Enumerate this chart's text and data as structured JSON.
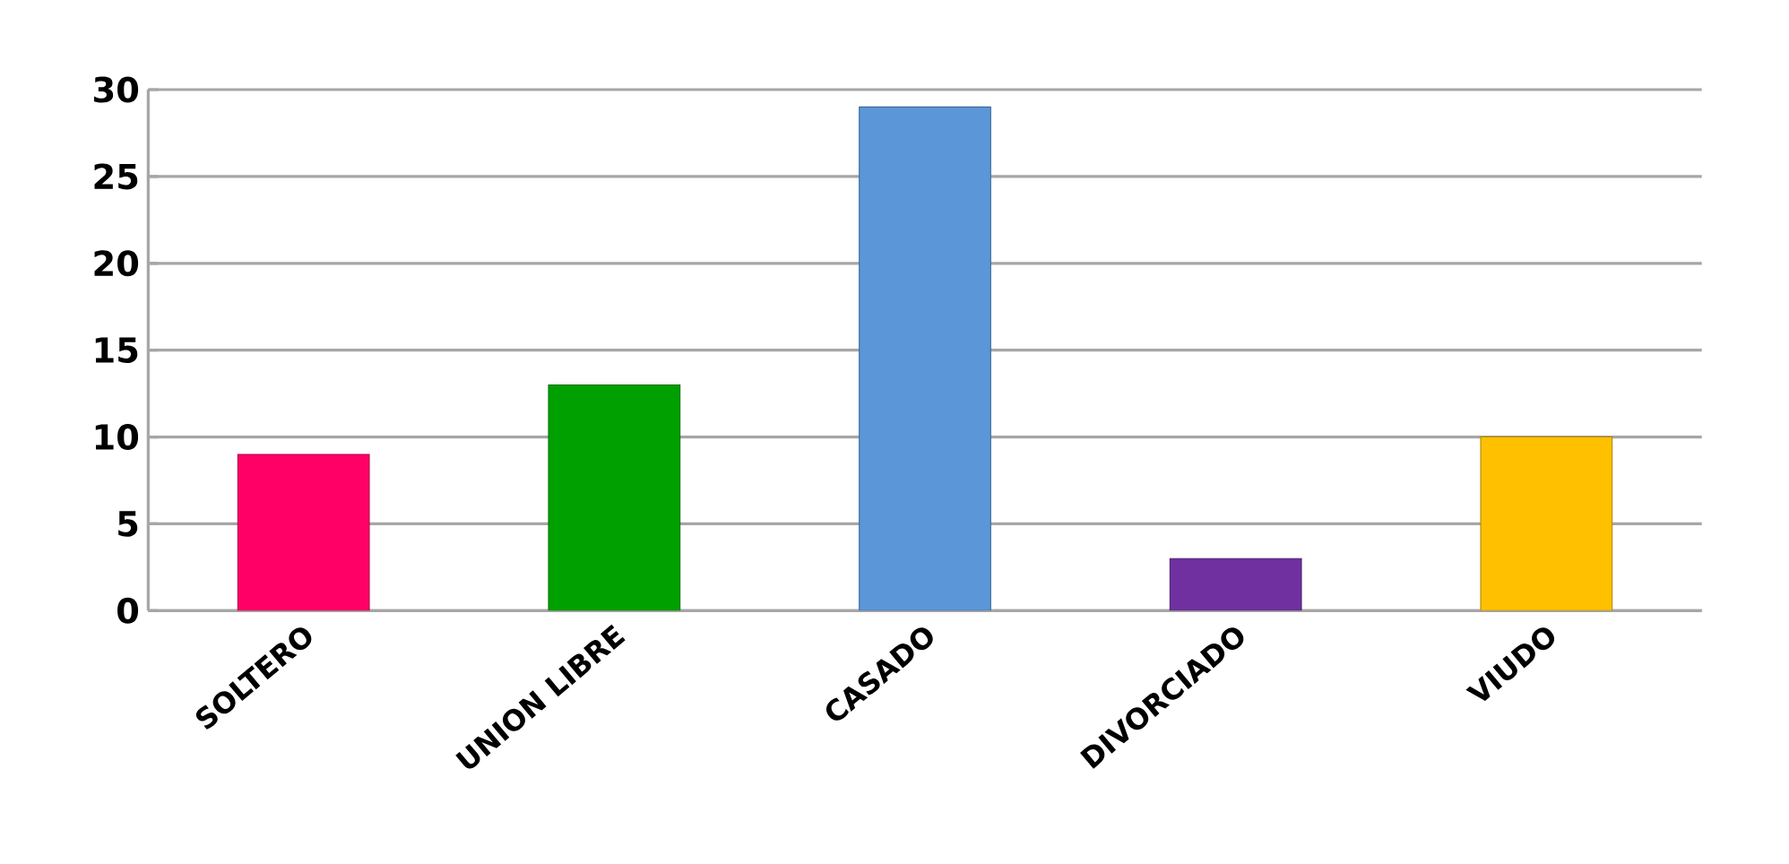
{
  "chart_data": {
    "type": "bar",
    "categories": [
      "SOLTERO",
      "UNION LIBRE",
      "CASADO",
      "DIVORCIADO",
      "VIUDO"
    ],
    "values": [
      9,
      13,
      29,
      3,
      10
    ],
    "colors": [
      "#ff0066",
      "#00a000",
      "#5b96d8",
      "#7030a0",
      "#ffc000"
    ],
    "ylim": [
      0,
      30
    ],
    "yticks": [
      0,
      5,
      10,
      15,
      20,
      25,
      30
    ],
    "grid": "y"
  }
}
